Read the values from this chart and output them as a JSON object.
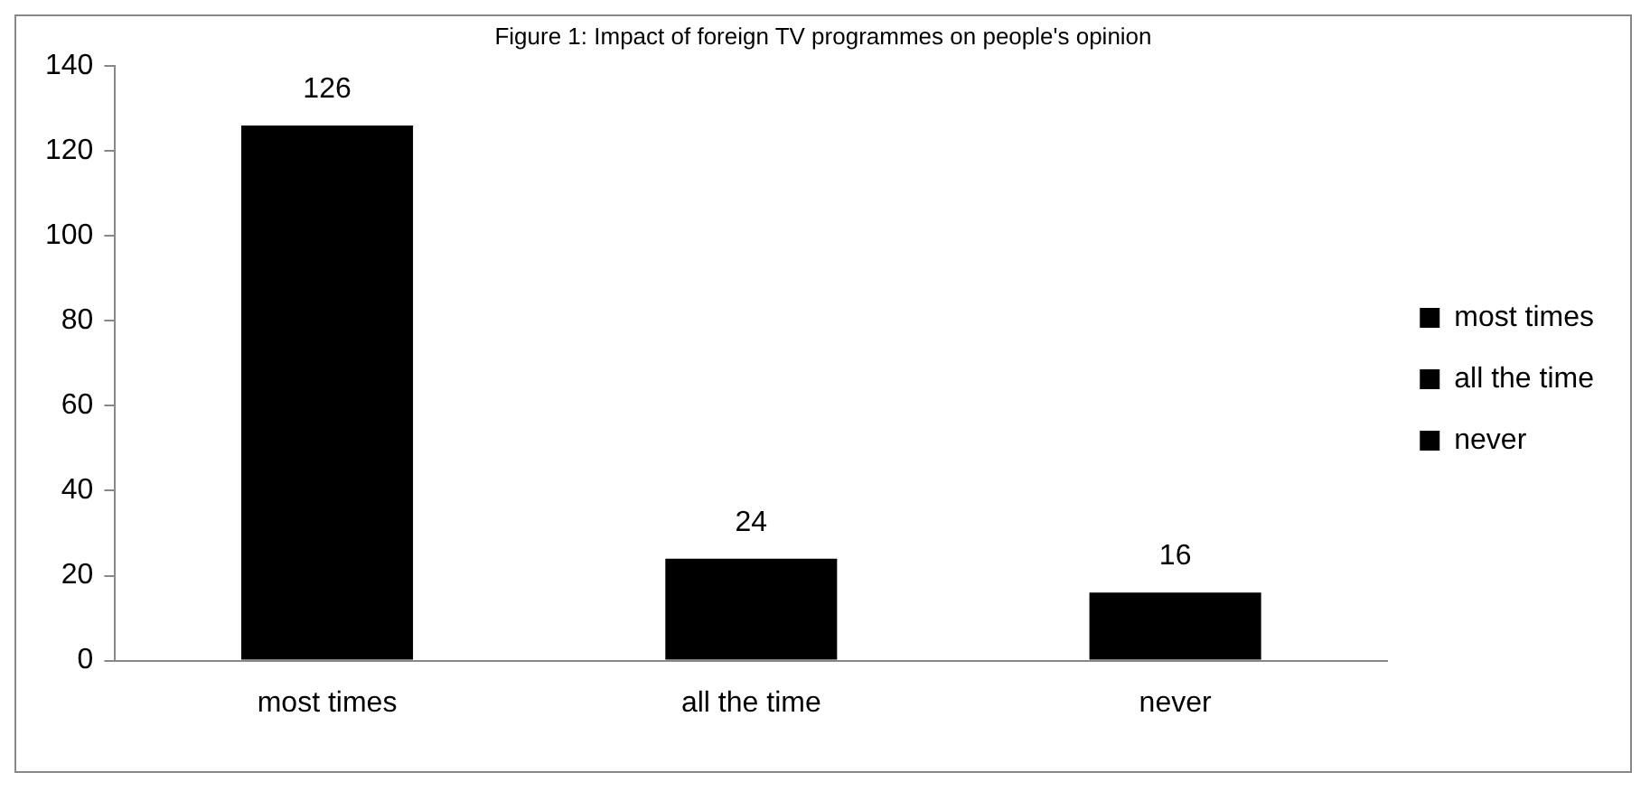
{
  "chart_data": {
    "type": "bar",
    "title": "Figure 1: Impact of foreign TV programmes on people's opinion",
    "categories": [
      "most times",
      "all the time",
      "never"
    ],
    "series": [
      {
        "name": "most times",
        "color": "#000000",
        "values": [
          126,
          null,
          null
        ]
      },
      {
        "name": "all the time",
        "color": "#000000",
        "values": [
          null,
          24,
          null
        ]
      },
      {
        "name": "never",
        "color": "#000000",
        "values": [
          null,
          null,
          16
        ]
      }
    ],
    "ylim": [
      0,
      140
    ],
    "yticks": [
      0,
      20,
      40,
      60,
      80,
      100,
      120,
      140
    ],
    "grid": false,
    "legend": "right",
    "data_labels": true
  }
}
